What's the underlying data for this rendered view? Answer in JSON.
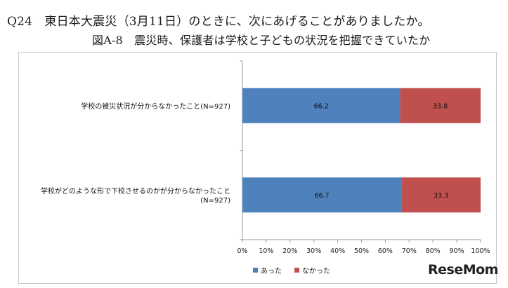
{
  "header": {
    "question": "Q24　東日本大震災（3月11日）のときに、次にあげることがありましたか。",
    "subtitle": "図A-8　震災時、保護者は学校と子どもの状況を把握できていたか"
  },
  "chart_data": {
    "type": "bar",
    "orientation": "horizontal",
    "stacked": true,
    "categories": [
      [
        "学校の被災状況が分からなかったこと(N=927)"
      ],
      [
        "学校がどのような形で下校させるのかが分からなかったこと",
        "(N=927)"
      ]
    ],
    "series": [
      {
        "name": "あった",
        "values": [
          66.2,
          66.7
        ],
        "color": "#4f81bd"
      },
      {
        "name": "なかった",
        "values": [
          33.8,
          33.3
        ],
        "color": "#c0504d"
      }
    ],
    "xlim": [
      0,
      100
    ],
    "xticks": [
      "0%",
      "10%",
      "20%",
      "30%",
      "40%",
      "50%",
      "60%",
      "70%",
      "80%",
      "90%",
      "100%"
    ],
    "grid": false,
    "legend": "bottom"
  },
  "branding": {
    "logo_text": "ReseMom"
  }
}
